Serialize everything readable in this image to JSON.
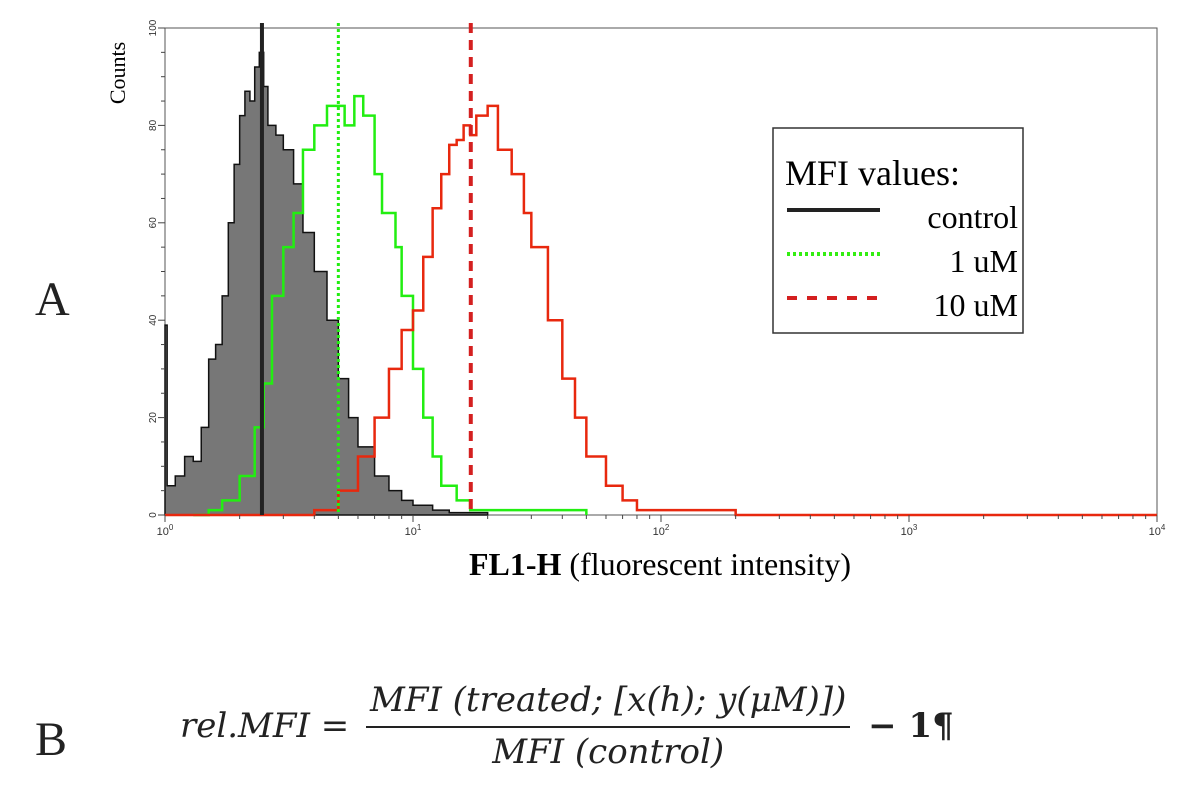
{
  "panels": {
    "a": "A",
    "b": "B"
  },
  "chart_data": {
    "type": "line",
    "xlabel_bold": "FL1-H",
    "xlabel_rest": " (fluorescent intensity)",
    "ylabel": "Counts",
    "xscale": "log",
    "xlim": [
      1,
      10000
    ],
    "ylim": [
      0,
      100
    ],
    "xticks": [
      {
        "base": "10",
        "exp": "0",
        "v": 1
      },
      {
        "base": "10",
        "exp": "1",
        "v": 10
      },
      {
        "base": "10",
        "exp": "2",
        "v": 100
      },
      {
        "base": "10",
        "exp": "3",
        "v": 1000
      },
      {
        "base": "10",
        "exp": "4",
        "v": 10000
      }
    ],
    "yticks": [
      0,
      20,
      40,
      60,
      80,
      100
    ],
    "legend": {
      "title": "MFI values:",
      "placement": "top-right",
      "entries": [
        "control",
        "1 uM",
        "10 uM"
      ]
    },
    "series": [
      {
        "name": "control",
        "color": "#111111",
        "fill": "#777777",
        "mfi": 2.46,
        "x": [
          1.0,
          1.02,
          1.1,
          1.2,
          1.3,
          1.4,
          1.5,
          1.6,
          1.7,
          1.8,
          1.9,
          2.0,
          2.1,
          2.2,
          2.3,
          2.4,
          2.5,
          2.6,
          2.8,
          3.0,
          3.3,
          3.6,
          4.0,
          4.5,
          5.0,
          5.5,
          6,
          7,
          8,
          9,
          10,
          12,
          14,
          20
        ],
        "y": [
          39,
          6,
          8,
          12,
          11,
          18,
          32,
          35,
          45,
          60,
          72,
          82,
          87,
          85,
          92,
          95,
          88,
          80,
          78,
          75,
          68,
          58,
          50,
          40,
          28,
          20,
          14,
          8,
          5,
          3,
          2,
          1,
          0.5,
          0
        ]
      },
      {
        "name": "1 uM",
        "color": "#22ee11",
        "mfi": 5.0,
        "x": [
          1.3,
          1.5,
          1.7,
          2.0,
          2.3,
          2.5,
          2.7,
          3.0,
          3.3,
          3.6,
          4.0,
          4.5,
          5.0,
          5.3,
          5.8,
          6.3,
          7,
          7.5,
          8.5,
          9,
          10,
          11,
          12,
          13,
          15,
          17,
          20,
          40,
          50
        ],
        "y": [
          0,
          1,
          3,
          8,
          18,
          27,
          45,
          55,
          62,
          75,
          80,
          84,
          84,
          80,
          86,
          82,
          70,
          62,
          55,
          45,
          30,
          20,
          12,
          6,
          3,
          1,
          1,
          1,
          0
        ]
      },
      {
        "name": "10 uM",
        "color": "#e8280e",
        "mfi": 17.1,
        "x": [
          1,
          3.5,
          4,
          5,
          6,
          7,
          8,
          9,
          10,
          11,
          12,
          13,
          14,
          15,
          16,
          17,
          18,
          20,
          22,
          25,
          28,
          30,
          35,
          40,
          45,
          50,
          60,
          70,
          80,
          100,
          150,
          200,
          10000
        ],
        "y": [
          0,
          0,
          1,
          5,
          12,
          20,
          30,
          38,
          42,
          53,
          63,
          70,
          76,
          77,
          80,
          78,
          82,
          84,
          75,
          70,
          62,
          55,
          40,
          28,
          20,
          12,
          6,
          3,
          1,
          1,
          1,
          0,
          0
        ]
      }
    ]
  },
  "formula": {
    "lhs": "rel.MFI",
    "eq": " = ",
    "num": "MFI (treated; [x(h); y(μM)])",
    "den": "MFI (control)",
    "tail": " − 1¶"
  }
}
